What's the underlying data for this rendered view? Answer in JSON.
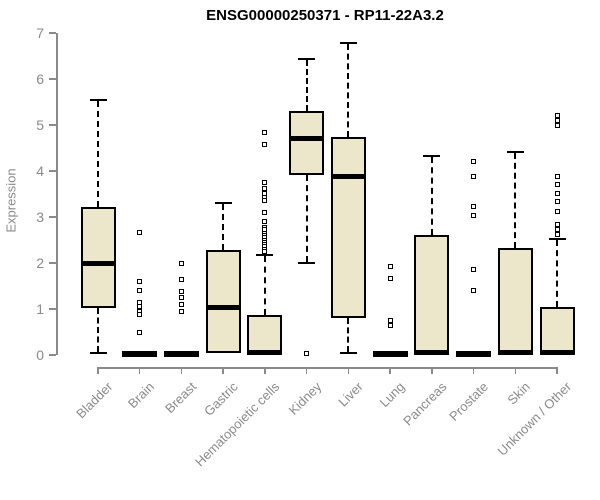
{
  "chart_data": {
    "type": "box",
    "title": "ENSG00000250371 - RP11-22A3.2",
    "xlabel": "",
    "ylabel": "Expression",
    "ylim": [
      0,
      7
    ],
    "yticks": [
      0,
      1,
      2,
      3,
      4,
      5,
      6,
      7
    ],
    "grid": false,
    "legend": false,
    "categories": [
      "Bladder",
      "Brain",
      "Breast",
      "Gastric",
      "Hematopoietic cells",
      "Kidney",
      "Liver",
      "Lung",
      "Pancreas",
      "Prostate",
      "Skin",
      "Unknown / Other"
    ],
    "series": [
      {
        "name": "Bladder",
        "low": 0.05,
        "q1": 1.02,
        "median": 2.0,
        "q3": 3.22,
        "high": 5.55,
        "outliers": []
      },
      {
        "name": "Brain",
        "low": 0,
        "q1": 0,
        "median": 0.02,
        "q3": 0.05,
        "high": 0.05,
        "outliers": [
          2.67,
          1.6,
          1.4,
          1.15,
          1.05,
          0.95,
          0.87,
          0.5
        ]
      },
      {
        "name": "Breast",
        "low": 0,
        "q1": 0,
        "median": 0.02,
        "q3": 0.05,
        "high": 0.05,
        "outliers": [
          2.0,
          1.65,
          1.37,
          1.25,
          1.1,
          0.95
        ]
      },
      {
        "name": "Gastric",
        "low": 0.04,
        "q1": 0.04,
        "median": 1.04,
        "q3": 2.28,
        "high": 3.3,
        "outliers": []
      },
      {
        "name": "Hematopoietic cells",
        "low": 0.02,
        "q1": 0.02,
        "median": 0.05,
        "q3": 0.87,
        "high": 2.17,
        "outliers": [
          4.83,
          4.57,
          3.76,
          3.63,
          3.52,
          3.43,
          3.35,
          3.09,
          2.91,
          2.78,
          2.72,
          2.65,
          2.6,
          2.55,
          2.5,
          2.45,
          2.4,
          2.35,
          2.3,
          2.25
        ]
      },
      {
        "name": "Kidney",
        "low": 2.0,
        "q1": 3.91,
        "median": 4.7,
        "q3": 5.3,
        "high": 6.43,
        "outliers": [
          0.04
        ]
      },
      {
        "name": "Liver",
        "low": 0.04,
        "q1": 0.8,
        "median": 3.87,
        "q3": 4.74,
        "high": 6.78,
        "outliers": []
      },
      {
        "name": "Lung",
        "low": 0,
        "q1": 0,
        "median": 0.02,
        "q3": 0.05,
        "high": 0.05,
        "outliers": [
          1.93,
          1.67,
          0.74,
          0.65
        ]
      },
      {
        "name": "Pancreas",
        "low": 0.02,
        "q1": 0.02,
        "median": 0.05,
        "q3": 2.6,
        "high": 4.33,
        "outliers": []
      },
      {
        "name": "Prostate",
        "low": 0,
        "q1": 0,
        "median": 0.02,
        "q3": 0.05,
        "high": 0.05,
        "outliers": [
          4.2,
          3.87,
          3.22,
          3.04,
          1.85,
          1.41
        ]
      },
      {
        "name": "Skin",
        "low": 0.02,
        "q1": 0.02,
        "median": 0.05,
        "q3": 2.33,
        "high": 4.41,
        "outliers": []
      },
      {
        "name": "Unknown / Other",
        "low": 0.02,
        "q1": 0.02,
        "median": 0.05,
        "q3": 1.04,
        "high": 2.52,
        "outliers": [
          5.2,
          5.1,
          5.0,
          3.89,
          3.7,
          3.52,
          3.33,
          3.12,
          2.83,
          2.72,
          2.61
        ]
      }
    ],
    "colors": {
      "box_fill": "#ece7ca",
      "box_border": "#000000",
      "median": "#000000",
      "whisker": "#000000",
      "axis": "#8a8a8a",
      "tick_label": "#8a8a8a",
      "title": "#000000",
      "background": "#ffffff"
    }
  }
}
